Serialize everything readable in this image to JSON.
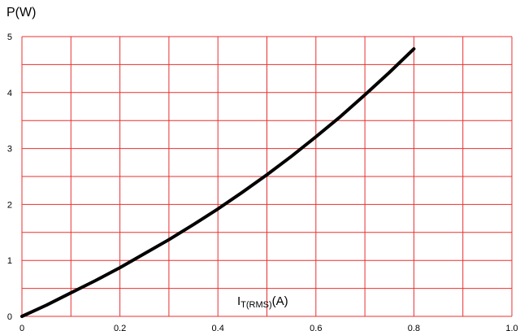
{
  "chart_data": {
    "type": "line",
    "ylabel": "P(W)",
    "xlabel": {
      "main": "I",
      "subscript": "T(RMS)",
      "unit": "(A)"
    },
    "xlim": [
      0,
      1.0
    ],
    "ylim": [
      0,
      5
    ],
    "x_grid_step": 0.1,
    "y_grid_step": 0.5,
    "x_tick_labels": [
      "0",
      "0.2",
      "0.4",
      "0.6",
      "0.8",
      "1.0"
    ],
    "x_tick_values": [
      0,
      0.2,
      0.4,
      0.6,
      0.8,
      1.0
    ],
    "y_tick_labels": [
      "0",
      "1",
      "2",
      "3",
      "4",
      "5"
    ],
    "y_tick_values": [
      0,
      1,
      2,
      3,
      4,
      5
    ],
    "grid": true,
    "colors": {
      "grid": "#e8302f",
      "curve": "#000000"
    },
    "series": [
      {
        "x": [
          0,
          0.05,
          0.1,
          0.15,
          0.2,
          0.25,
          0.3,
          0.35,
          0.4,
          0.45,
          0.5,
          0.55,
          0.6,
          0.65,
          0.7,
          0.75,
          0.8
        ],
        "values": [
          0,
          0.2,
          0.42,
          0.64,
          0.87,
          1.12,
          1.37,
          1.64,
          1.92,
          2.22,
          2.53,
          2.86,
          3.21,
          3.57,
          3.96,
          4.36,
          4.78
        ]
      }
    ]
  }
}
